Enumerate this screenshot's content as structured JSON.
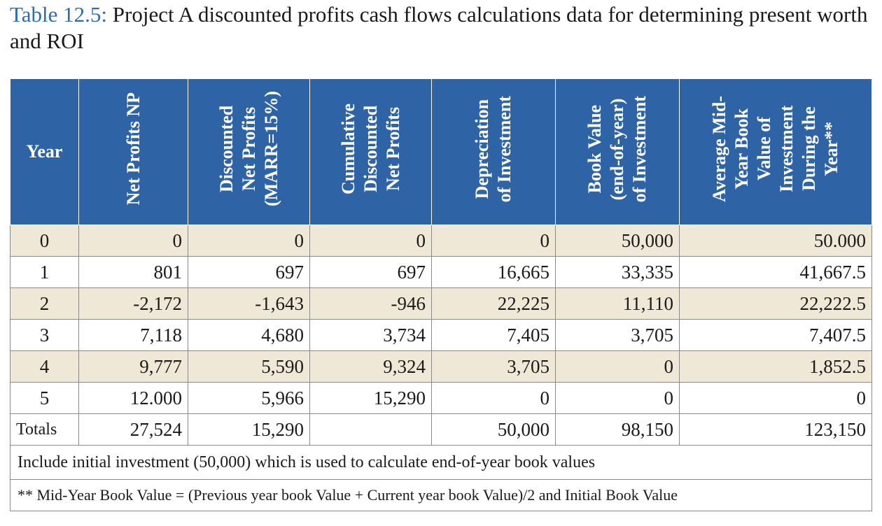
{
  "caption": {
    "label": "Table 12.5:",
    "text": "Project A discounted profits cash flows calculations data for determining present worth and ROI"
  },
  "headers": {
    "year": "Year",
    "np": [
      "Net Profits NP"
    ],
    "dnp": [
      "Discounted",
      "Net Profits",
      "(MARR=15%)"
    ],
    "cdnp": [
      "Cumulative",
      "Discounted",
      "Net Profits"
    ],
    "dep": [
      "Depreciation",
      "of Investment"
    ],
    "bv": [
      "Book Value",
      "(end-of-year)",
      "of Investment"
    ],
    "avg": [
      "Average Mid-",
      "Year Book",
      "Value of",
      "Investment",
      "During the",
      "Year**"
    ]
  },
  "rows": [
    {
      "year": "0",
      "np": "0",
      "dnp": "0",
      "cdnp": "0",
      "dep": "0",
      "bv": "50,000",
      "avg": "50.000"
    },
    {
      "year": "1",
      "np": "801",
      "dnp": "697",
      "cdnp": "697",
      "dep": "16,665",
      "bv": "33,335",
      "avg": "41,667.5"
    },
    {
      "year": "2",
      "np": "-2,172",
      "dnp": "-1,643",
      "cdnp": "-946",
      "dep": "22,225",
      "bv": "11,110",
      "avg": "22,222.5"
    },
    {
      "year": "3",
      "np": "7,118",
      "dnp": "4,680",
      "cdnp": "3,734",
      "dep": "7,405",
      "bv": "3,705",
      "avg": "7,407.5"
    },
    {
      "year": "4",
      "np": "9,777",
      "dnp": "5,590",
      "cdnp": "9,324",
      "dep": "3,705",
      "bv": "0",
      "avg": "1,852.5"
    },
    {
      "year": "5",
      "np": "12.000",
      "dnp": "5,966",
      "cdnp": "15,290",
      "dep": "0",
      "bv": "0",
      "avg": "0"
    }
  ],
  "totals": {
    "label": "Totals",
    "np": "27,524",
    "dnp": "15,290",
    "cdnp": "",
    "dep": "50,000",
    "bv": "98,150",
    "avg": "123,150"
  },
  "notes": [
    "Include initial investment (50,000) which is used to calculate end-of-year book values",
    "** Mid-Year Book Value = (Previous year book Value + Current year book Value)/2 and Initial Book Value"
  ],
  "colors": {
    "header_bg": "#2e64a6",
    "shade_bg": "#efe8d6",
    "caption_label": "#2e6cb0"
  }
}
